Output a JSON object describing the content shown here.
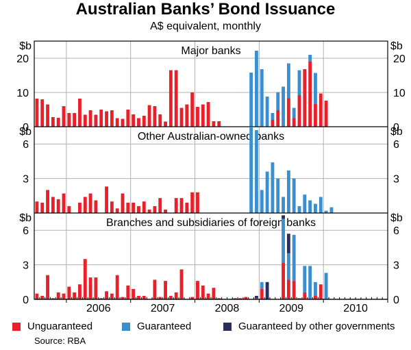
{
  "title": "Australian Banks’ Bond Issuance",
  "subtitle": "A$ equivalent, monthly",
  "source": "Source: RBA",
  "colors": {
    "unguaranteed": "#e8202a",
    "guaranteed": "#3b8fd0",
    "other_gov": "#2b2d5e",
    "grid": "#b0b0b0",
    "frame": "#000000"
  },
  "legend": [
    {
      "label": "Unguaranteed",
      "color": "#e8202a"
    },
    {
      "label": "Guaranteed",
      "color": "#3b8fd0"
    },
    {
      "label": "Guaranteed by other governments",
      "color": "#2b2d5e"
    }
  ],
  "chart_data": {
    "type": "bar",
    "stacked": true,
    "frequency": "monthly",
    "x_range": [
      "2005-07",
      "2010-12"
    ],
    "x_tick_labels": [
      "2006",
      "2007",
      "2008",
      "2009",
      "2010"
    ],
    "series_names": [
      "Unguaranteed",
      "Guaranteed",
      "Guaranteed by other governments"
    ],
    "panels": [
      {
        "label": "Major banks",
        "unit_label": "$b",
        "ylim": [
          0,
          25
        ],
        "yticks": [
          0,
          10,
          20
        ],
        "bars": [
          [
            "2005-07",
            8.2,
            0,
            0
          ],
          [
            "2005-08",
            8,
            0,
            0
          ],
          [
            "2005-09",
            6.5,
            0,
            0
          ],
          [
            "2005-10",
            2.8,
            0,
            0
          ],
          [
            "2005-11",
            2.6,
            0,
            0
          ],
          [
            "2005-12",
            6,
            0,
            0
          ],
          [
            "2006-01",
            4,
            0,
            0
          ],
          [
            "2006-02",
            4,
            0,
            0
          ],
          [
            "2006-03",
            8.2,
            0,
            0
          ],
          [
            "2006-04",
            3.5,
            0,
            0
          ],
          [
            "2006-05",
            4.8,
            0,
            0
          ],
          [
            "2006-06",
            3.5,
            0,
            0
          ],
          [
            "2006-07",
            5,
            0,
            0
          ],
          [
            "2006-08",
            4.5,
            0,
            0
          ],
          [
            "2006-09",
            4.8,
            0,
            0
          ],
          [
            "2006-10",
            2.5,
            0,
            0
          ],
          [
            "2006-11",
            2.3,
            0,
            0
          ],
          [
            "2006-12",
            5,
            0,
            0
          ],
          [
            "2007-01",
            3.6,
            0,
            0
          ],
          [
            "2007-02",
            2.5,
            0,
            0
          ],
          [
            "2007-03",
            3.2,
            0,
            0
          ],
          [
            "2007-04",
            6.3,
            0,
            0
          ],
          [
            "2007-05",
            6,
            0,
            0
          ],
          [
            "2007-06",
            3.6,
            0,
            0
          ],
          [
            "2007-07",
            1.5,
            0,
            0
          ],
          [
            "2007-08",
            16.5,
            0,
            0
          ],
          [
            "2007-09",
            16.5,
            0,
            0
          ],
          [
            "2007-10",
            5.5,
            0,
            0
          ],
          [
            "2007-11",
            6.5,
            0,
            0
          ],
          [
            "2007-12",
            10,
            0,
            0
          ],
          [
            "2008-01",
            5.8,
            0,
            0
          ],
          [
            "2008-02",
            6.5,
            0,
            0
          ],
          [
            "2008-03",
            7.2,
            0,
            0
          ],
          [
            "2008-04",
            1.6,
            0,
            0
          ],
          [
            "2008-05",
            1.6,
            0,
            0
          ],
          [
            "2008-06",
            0,
            0,
            0
          ],
          [
            "2008-07",
            0,
            0,
            0
          ],
          [
            "2008-08",
            0,
            0,
            0
          ],
          [
            "2008-09",
            0,
            0,
            0
          ],
          [
            "2008-10",
            0,
            0,
            0
          ],
          [
            "2008-11",
            0,
            15.8,
            0
          ],
          [
            "2008-12",
            0,
            22.2,
            0
          ],
          [
            "2009-01",
            0,
            16.8,
            0
          ],
          [
            "2009-02",
            0,
            8.8,
            0
          ],
          [
            "2009-03",
            2,
            2,
            0
          ],
          [
            "2009-04",
            4.8,
            5.3,
            0
          ],
          [
            "2009-05",
            0,
            11.7,
            0
          ],
          [
            "2009-06",
            8.3,
            10.2,
            0
          ],
          [
            "2009-07",
            2.5,
            3,
            0
          ],
          [
            "2009-08",
            9.2,
            7.3,
            0
          ],
          [
            "2009-09",
            16.8,
            0,
            0
          ],
          [
            "2009-10",
            19,
            2,
            0
          ],
          [
            "2009-11",
            6.6,
            9.1,
            0
          ],
          [
            "2009-12",
            9.7,
            0,
            0
          ],
          [
            "2010-01",
            7.6,
            0,
            0
          ]
        ]
      },
      {
        "label": "Other Australian-owned banks",
        "unit_label": "$b",
        "ylim": [
          0,
          7.5
        ],
        "yticks": [
          3,
          6
        ],
        "bars": [
          [
            "2005-07",
            1,
            0,
            0
          ],
          [
            "2005-08",
            0.9,
            0,
            0
          ],
          [
            "2005-09",
            2,
            0,
            0
          ],
          [
            "2005-10",
            1.4,
            0,
            0
          ],
          [
            "2005-11",
            1.2,
            0,
            0
          ],
          [
            "2005-12",
            1.7,
            0,
            0
          ],
          [
            "2006-01",
            0.6,
            0,
            0
          ],
          [
            "2006-02",
            0,
            0,
            0
          ],
          [
            "2006-03",
            0.9,
            0,
            0
          ],
          [
            "2006-04",
            1.4,
            0,
            0
          ],
          [
            "2006-05",
            1.7,
            0,
            0
          ],
          [
            "2006-06",
            1.1,
            0,
            0
          ],
          [
            "2006-07",
            0,
            0,
            0
          ],
          [
            "2006-08",
            2.3,
            0,
            0
          ],
          [
            "2006-09",
            1,
            0,
            0
          ],
          [
            "2006-10",
            0.4,
            0,
            0
          ],
          [
            "2006-11",
            1.7,
            0,
            0
          ],
          [
            "2006-12",
            0.9,
            0,
            0
          ],
          [
            "2007-01",
            0.9,
            0,
            0
          ],
          [
            "2007-02",
            0.6,
            0,
            0
          ],
          [
            "2007-03",
            1,
            0,
            0
          ],
          [
            "2007-04",
            0.3,
            0,
            0
          ],
          [
            "2007-05",
            0.6,
            0,
            0
          ],
          [
            "2007-06",
            1.3,
            0,
            0
          ],
          [
            "2007-07",
            0.3,
            0,
            0
          ],
          [
            "2007-08",
            0,
            0,
            0
          ],
          [
            "2007-09",
            1.3,
            0,
            0
          ],
          [
            "2007-10",
            1.3,
            0,
            0
          ],
          [
            "2007-11",
            0.9,
            0,
            0
          ],
          [
            "2007-12",
            1.8,
            0,
            0
          ],
          [
            "2008-01",
            1.8,
            0,
            0
          ],
          [
            "2008-02",
            0,
            0,
            0
          ],
          [
            "2008-03",
            0,
            0,
            0
          ],
          [
            "2008-04",
            0,
            0,
            0
          ],
          [
            "2008-05",
            0,
            0,
            0
          ],
          [
            "2008-06",
            0,
            0,
            0
          ],
          [
            "2008-07",
            0,
            0,
            0
          ],
          [
            "2008-08",
            0,
            0,
            0
          ],
          [
            "2008-09",
            0,
            0,
            0
          ],
          [
            "2008-10",
            0,
            0,
            0
          ],
          [
            "2008-11",
            0,
            7.5,
            0
          ],
          [
            "2008-12",
            0,
            7.2,
            0
          ],
          [
            "2009-01",
            0,
            2,
            0
          ],
          [
            "2009-02",
            0,
            3.6,
            0
          ],
          [
            "2009-03",
            0,
            4.4,
            0
          ],
          [
            "2009-04",
            0,
            3,
            0
          ],
          [
            "2009-05",
            0,
            1.4,
            0
          ],
          [
            "2009-06",
            0,
            3.7,
            0
          ],
          [
            "2009-07",
            0,
            3,
            0
          ],
          [
            "2009-08",
            0,
            0.6,
            0
          ],
          [
            "2009-09",
            0,
            1.6,
            0
          ],
          [
            "2009-10",
            0,
            1.1,
            0
          ],
          [
            "2009-11",
            0,
            0.8,
            0
          ],
          [
            "2009-12",
            0,
            1.4,
            0
          ],
          [
            "2010-01",
            0,
            0.2,
            0
          ],
          [
            "2010-02",
            0,
            0.5,
            0
          ]
        ]
      },
      {
        "label": "Branches and subsidiaries of foreign banks",
        "unit_label": "$b",
        "ylim": [
          0,
          7.5
        ],
        "yticks": [
          0,
          3,
          6
        ],
        "bars": [
          [
            "2005-07",
            0.5,
            0,
            0
          ],
          [
            "2005-08",
            0.3,
            0,
            0
          ],
          [
            "2005-09",
            2.1,
            0,
            0
          ],
          [
            "2005-10",
            0.1,
            0,
            0
          ],
          [
            "2005-11",
            0.6,
            0,
            0
          ],
          [
            "2005-12",
            0.5,
            0,
            0
          ],
          [
            "2006-01",
            1.1,
            0,
            0
          ],
          [
            "2006-02",
            0.6,
            0,
            0
          ],
          [
            "2006-03",
            1.3,
            0,
            0
          ],
          [
            "2006-04",
            3.5,
            0,
            0
          ],
          [
            "2006-05",
            1.9,
            0,
            0
          ],
          [
            "2006-06",
            1.9,
            0,
            0
          ],
          [
            "2006-07",
            0.1,
            0,
            0
          ],
          [
            "2006-08",
            0.7,
            0,
            0
          ],
          [
            "2006-09",
            0.5,
            0,
            0
          ],
          [
            "2006-10",
            2.1,
            0,
            0
          ],
          [
            "2006-11",
            0.2,
            0,
            0
          ],
          [
            "2006-12",
            1.2,
            0,
            0
          ],
          [
            "2007-01",
            0.9,
            0,
            0
          ],
          [
            "2007-02",
            0.3,
            0,
            0
          ],
          [
            "2007-03",
            0.3,
            0,
            0
          ],
          [
            "2007-04",
            0,
            0,
            0
          ],
          [
            "2007-05",
            1.7,
            0,
            0
          ],
          [
            "2007-06",
            0.2,
            0,
            0
          ],
          [
            "2007-07",
            1.6,
            0,
            0
          ],
          [
            "2007-08",
            0.3,
            0,
            0
          ],
          [
            "2007-09",
            0.6,
            0,
            0
          ],
          [
            "2007-10",
            2.6,
            0,
            0
          ],
          [
            "2007-11",
            0,
            0,
            0
          ],
          [
            "2007-12",
            0.2,
            0,
            0
          ],
          [
            "2008-01",
            1.6,
            0,
            0
          ],
          [
            "2008-02",
            1.2,
            0,
            0
          ],
          [
            "2008-03",
            0.5,
            0,
            0
          ],
          [
            "2008-04",
            1,
            0,
            0
          ],
          [
            "2008-05",
            0.1,
            0,
            0
          ],
          [
            "2008-06",
            0,
            0,
            0
          ],
          [
            "2008-07",
            0,
            0,
            0
          ],
          [
            "2008-08",
            0.1,
            0,
            0
          ],
          [
            "2008-09",
            0.1,
            0,
            0
          ],
          [
            "2008-10",
            0.2,
            0,
            0
          ],
          [
            "2008-11",
            0,
            0,
            0
          ],
          [
            "2008-12",
            0.1,
            0,
            0.2
          ],
          [
            "2009-01",
            0.9,
            0.6,
            0
          ],
          [
            "2009-02",
            0,
            0,
            1.5
          ],
          [
            "2009-03",
            0,
            0,
            0
          ],
          [
            "2009-04",
            0,
            0,
            0
          ],
          [
            "2009-05",
            3.2,
            3.8,
            0.3
          ],
          [
            "2009-06",
            1.7,
            2.3,
            1.7
          ],
          [
            "2009-07",
            1.6,
            4,
            0
          ],
          [
            "2009-08",
            0.1,
            0,
            0
          ],
          [
            "2009-09",
            0.6,
            2.3,
            0
          ],
          [
            "2009-10",
            0,
            2.9,
            0
          ],
          [
            "2009-11",
            0.3,
            1.2,
            0
          ],
          [
            "2009-12",
            1.3,
            0,
            0
          ],
          [
            "2010-01",
            0,
            2.3,
            0
          ]
        ]
      }
    ]
  }
}
